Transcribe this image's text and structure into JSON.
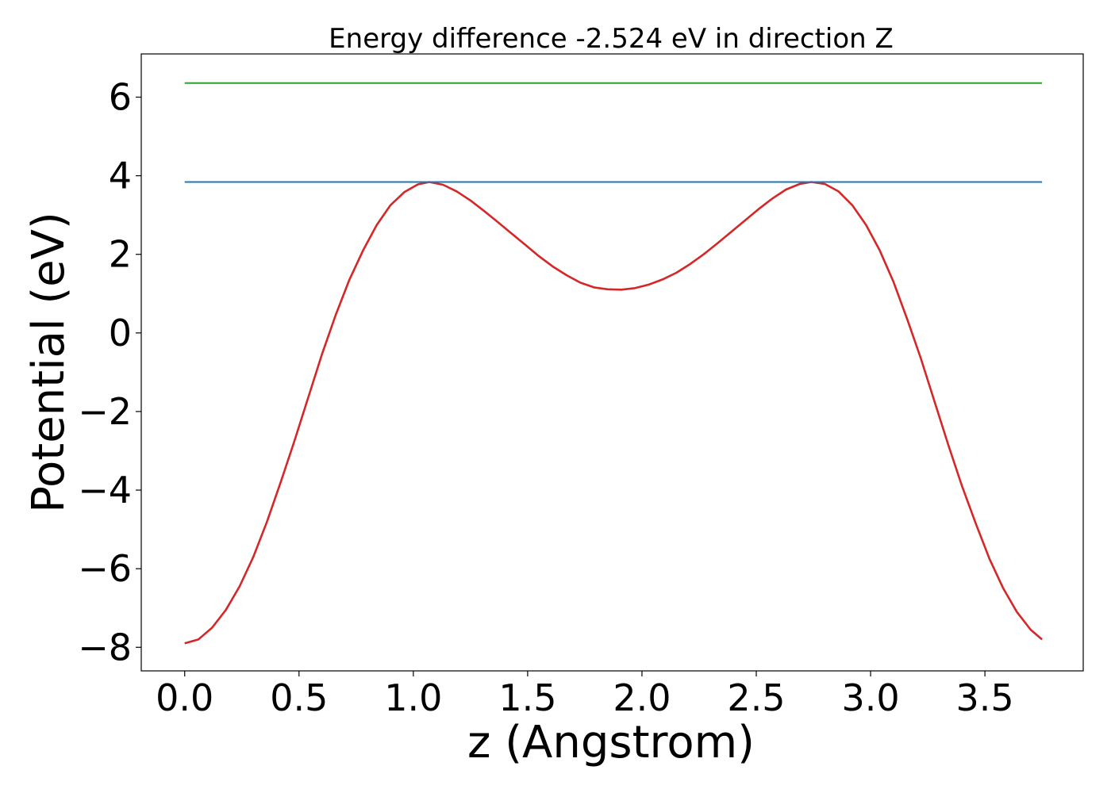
{
  "chart_data": {
    "type": "line",
    "title": "Energy difference -2.524 eV in direction Z",
    "xlabel": "z (Angstrom)",
    "ylabel": "Potential (eV)",
    "xlim": [
      -0.19,
      3.93
    ],
    "ylim": [
      -8.6,
      7.1
    ],
    "xticks": [
      0.0,
      0.5,
      1.0,
      1.5,
      2.0,
      2.5,
      3.0,
      3.5
    ],
    "xtick_labels": [
      "0.0",
      "0.5",
      "1.0",
      "1.5",
      "2.0",
      "2.5",
      "3.0",
      "3.5"
    ],
    "yticks": [
      -8,
      -6,
      -4,
      -2,
      0,
      2,
      4,
      6
    ],
    "ytick_labels": [
      "−8",
      "−6",
      "−4",
      "−2",
      "0",
      "2",
      "4",
      "6"
    ],
    "grid": false,
    "series": [
      {
        "color": "#d62728",
        "x": [
          0.0,
          0.06,
          0.12,
          0.18,
          0.24,
          0.3,
          0.36,
          0.42,
          0.48,
          0.54,
          0.6,
          0.66,
          0.72,
          0.78,
          0.84,
          0.9,
          0.96,
          1.02,
          1.07,
          1.13,
          1.19,
          1.25,
          1.31,
          1.37,
          1.43,
          1.49,
          1.55,
          1.61,
          1.67,
          1.73,
          1.79,
          1.85,
          1.91,
          1.97,
          2.03,
          2.09,
          2.15,
          2.21,
          2.27,
          2.33,
          2.39,
          2.45,
          2.51,
          2.57,
          2.63,
          2.69,
          2.74,
          2.8,
          2.86,
          2.92,
          2.98,
          3.04,
          3.1,
          3.16,
          3.22,
          3.28,
          3.34,
          3.4,
          3.46,
          3.52,
          3.58,
          3.64,
          3.7,
          3.75
        ],
        "y": [
          -7.9,
          -7.8,
          -7.5,
          -7.05,
          -6.45,
          -5.7,
          -4.8,
          -3.8,
          -2.75,
          -1.65,
          -0.55,
          0.45,
          1.35,
          2.1,
          2.75,
          3.25,
          3.58,
          3.78,
          3.84,
          3.77,
          3.6,
          3.37,
          3.1,
          2.82,
          2.53,
          2.24,
          1.95,
          1.69,
          1.47,
          1.28,
          1.16,
          1.11,
          1.1,
          1.14,
          1.23,
          1.36,
          1.53,
          1.75,
          2.0,
          2.28,
          2.57,
          2.86,
          3.15,
          3.42,
          3.65,
          3.79,
          3.84,
          3.79,
          3.6,
          3.25,
          2.75,
          2.1,
          1.3,
          0.35,
          -0.65,
          -1.75,
          -2.85,
          -3.9,
          -4.85,
          -5.75,
          -6.5,
          -7.1,
          -7.55,
          -7.8
        ]
      },
      {
        "color": "#1f77b4",
        "x": [
          0.0,
          3.75
        ],
        "y": [
          3.84,
          3.84
        ]
      },
      {
        "color": "#2ca02c",
        "x": [
          0.0,
          3.75
        ],
        "y": [
          6.36,
          6.36
        ]
      }
    ]
  }
}
